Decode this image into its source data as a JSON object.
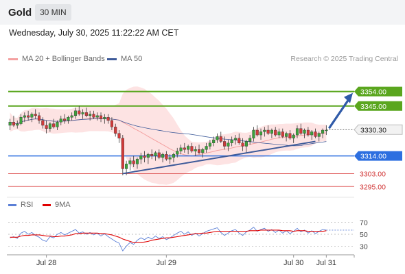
{
  "header": {
    "title": "Gold",
    "timeframe": "30 MIN"
  },
  "datetime": "Wednesday, July 30, 2025 11:22:22 AM CET",
  "legend": {
    "ma20": {
      "label": "MA 20 + Bollinger Bands",
      "color": "#f4a0a0"
    },
    "ma50": {
      "label": "MA 50",
      "color": "#3d5a99"
    }
  },
  "credit": "Research © 2025 Trading Central",
  "rsi_legend": {
    "rsi": {
      "label": "RSI",
      "color": "#5b7fd6"
    },
    "ma9": {
      "label": "9MA",
      "color": "#e00000"
    }
  },
  "chart_data": [
    {
      "type": "candlestick",
      "title": "",
      "x_labels": [
        "Jul 28",
        "Jul 29",
        "Jul 30",
        "Jul 31"
      ],
      "ylim": [
        3290,
        3370
      ],
      "last_price": 3330.3,
      "levels": [
        {
          "value": 3354.0,
          "label": "3354.00",
          "style": "resistance",
          "color": "#5aa61e"
        },
        {
          "value": 3345.0,
          "label": "3345.00",
          "style": "resistance",
          "color": "#5aa61e"
        },
        {
          "value": 3314.0,
          "label": "3314.00",
          "style": "support",
          "color": "#2d6fe0"
        },
        {
          "value": 3303.0,
          "label": "3303.00",
          "style": "minor",
          "color": "#e06060"
        },
        {
          "value": 3295.0,
          "label": "3295.00",
          "style": "minor",
          "color": "#e06060"
        }
      ],
      "trendline": {
        "from": [
          "Jul 28 16:00",
          3303
        ],
        "to": [
          "Jul 30 11:00",
          3323
        ]
      },
      "projection": {
        "from": 3330.3,
        "to": 3354.0
      },
      "candles": [
        [
          3333,
          3337,
          3330,
          3335
        ],
        [
          3335,
          3339,
          3332,
          3333
        ],
        [
          3333,
          3336,
          3331,
          3334
        ],
        [
          3334,
          3340,
          3333,
          3338
        ],
        [
          3338,
          3341,
          3335,
          3339
        ],
        [
          3339,
          3342,
          3336,
          3338
        ],
        [
          3338,
          3341,
          3335,
          3340
        ],
        [
          3340,
          3343,
          3337,
          3339
        ],
        [
          3339,
          3341,
          3334,
          3336
        ],
        [
          3336,
          3338,
          3331,
          3333
        ],
        [
          3333,
          3336,
          3328,
          3331
        ],
        [
          3331,
          3335,
          3329,
          3334
        ],
        [
          3334,
          3337,
          3331,
          3332
        ],
        [
          3332,
          3336,
          3330,
          3335
        ],
        [
          3335,
          3339,
          3333,
          3337
        ],
        [
          3337,
          3340,
          3334,
          3336
        ],
        [
          3336,
          3339,
          3334,
          3338
        ],
        [
          3338,
          3341,
          3336,
          3339
        ],
        [
          3339,
          3344,
          3337,
          3342
        ],
        [
          3342,
          3345,
          3339,
          3340
        ],
        [
          3340,
          3343,
          3337,
          3341
        ],
        [
          3341,
          3344,
          3338,
          3339
        ],
        [
          3339,
          3342,
          3336,
          3340
        ],
        [
          3340,
          3342,
          3337,
          3338
        ],
        [
          3338,
          3341,
          3336,
          3339
        ],
        [
          3339,
          3341,
          3335,
          3337
        ],
        [
          3337,
          3340,
          3334,
          3338
        ],
        [
          3338,
          3340,
          3334,
          3336
        ],
        [
          3336,
          3338,
          3330,
          3332
        ],
        [
          3332,
          3334,
          3326,
          3328
        ],
        [
          3328,
          3330,
          3322,
          3325
        ],
        [
          3325,
          3327,
          3302,
          3306
        ],
        [
          3306,
          3311,
          3302,
          3309
        ],
        [
          3309,
          3313,
          3305,
          3311
        ],
        [
          3311,
          3314,
          3307,
          3309
        ],
        [
          3309,
          3313,
          3306,
          3312
        ],
        [
          3312,
          3316,
          3309,
          3314
        ],
        [
          3314,
          3317,
          3310,
          3313
        ],
        [
          3313,
          3316,
          3309,
          3315
        ],
        [
          3315,
          3318,
          3312,
          3314
        ],
        [
          3314,
          3317,
          3311,
          3316
        ],
        [
          3316,
          3318,
          3312,
          3313
        ],
        [
          3313,
          3316,
          3310,
          3315
        ],
        [
          3315,
          3317,
          3311,
          3312
        ],
        [
          3312,
          3315,
          3309,
          3313
        ],
        [
          3313,
          3316,
          3310,
          3315
        ],
        [
          3315,
          3319,
          3313,
          3317
        ],
        [
          3317,
          3321,
          3315,
          3319
        ],
        [
          3319,
          3322,
          3316,
          3318
        ],
        [
          3318,
          3321,
          3315,
          3320
        ],
        [
          3320,
          3322,
          3316,
          3317
        ],
        [
          3317,
          3320,
          3314,
          3318
        ],
        [
          3318,
          3321,
          3315,
          3316
        ],
        [
          3316,
          3319,
          3313,
          3318
        ],
        [
          3318,
          3322,
          3316,
          3320
        ],
        [
          3320,
          3324,
          3318,
          3322
        ],
        [
          3322,
          3326,
          3320,
          3324
        ],
        [
          3324,
          3328,
          3322,
          3326
        ],
        [
          3326,
          3329,
          3322,
          3323
        ],
        [
          3323,
          3326,
          3318,
          3320
        ],
        [
          3320,
          3324,
          3317,
          3322
        ],
        [
          3322,
          3326,
          3320,
          3324
        ],
        [
          3324,
          3327,
          3321,
          3325
        ],
        [
          3325,
          3328,
          3321,
          3322
        ],
        [
          3322,
          3325,
          3317,
          3320
        ],
        [
          3320,
          3324,
          3316,
          3323
        ],
        [
          3323,
          3327,
          3321,
          3325
        ],
        [
          3325,
          3332,
          3323,
          3330
        ],
        [
          3330,
          3333,
          3326,
          3327
        ],
        [
          3327,
          3331,
          3324,
          3329
        ],
        [
          3329,
          3332,
          3326,
          3330
        ],
        [
          3330,
          3333,
          3327,
          3328
        ],
        [
          3328,
          3331,
          3325,
          3330
        ],
        [
          3330,
          3332,
          3326,
          3327
        ],
        [
          3327,
          3331,
          3325,
          3329
        ],
        [
          3329,
          3331,
          3325,
          3326
        ],
        [
          3326,
          3329,
          3323,
          3328
        ],
        [
          3328,
          3330,
          3324,
          3325
        ],
        [
          3325,
          3328,
          3322,
          3327
        ],
        [
          3327,
          3333,
          3325,
          3331
        ],
        [
          3331,
          3334,
          3327,
          3328
        ],
        [
          3328,
          3331,
          3325,
          3330
        ],
        [
          3330,
          3332,
          3326,
          3327
        ],
        [
          3327,
          3330,
          3324,
          3329
        ],
        [
          3329,
          3331,
          3325,
          3326
        ],
        [
          3326,
          3329,
          3323,
          3328
        ],
        [
          3328,
          3331,
          3325,
          3330
        ],
        [
          3330,
          3333,
          3327,
          3330
        ]
      ]
    },
    {
      "type": "line",
      "title": "RSI",
      "yticks": [
        70,
        50,
        30
      ],
      "ylim": [
        20,
        80
      ],
      "series": [
        {
          "name": "RSI",
          "color": "#5b7fd6",
          "values": [
            44,
            46,
            43,
            52,
            55,
            50,
            53,
            48,
            45,
            40,
            38,
            46,
            44,
            50,
            53,
            49,
            52,
            55,
            58,
            52,
            54,
            50,
            53,
            49,
            52,
            47,
            51,
            46,
            42,
            38,
            35,
            22,
            30,
            36,
            33,
            40,
            44,
            41,
            45,
            42,
            47,
            43,
            46,
            41,
            44,
            48,
            52,
            55,
            50,
            54,
            48,
            52,
            47,
            51,
            55,
            57,
            59,
            61,
            53,
            48,
            52,
            56,
            58,
            52,
            48,
            54,
            57,
            62,
            55,
            58,
            60,
            55,
            58,
            53,
            57,
            52,
            56,
            51,
            55,
            60,
            54,
            57,
            52,
            56,
            51,
            55,
            58,
            57
          ]
        },
        {
          "name": "9MA",
          "color": "#e00000",
          "values": [
            45,
            45,
            45,
            47,
            48,
            48,
            49,
            49,
            49,
            48,
            47,
            47,
            46,
            46,
            47,
            47,
            48,
            49,
            51,
            51,
            52,
            52,
            52,
            52,
            52,
            51,
            51,
            50,
            49,
            47,
            45,
            42,
            40,
            38,
            36,
            36,
            36,
            37,
            38,
            40,
            41,
            42,
            43,
            44,
            44,
            45,
            46,
            47,
            48,
            49,
            50,
            51,
            51,
            52,
            52,
            53,
            54,
            55,
            55,
            55,
            55,
            55,
            55,
            55,
            55,
            55,
            56,
            56,
            56,
            57,
            57,
            57,
            57,
            57,
            57,
            56,
            56,
            56,
            55,
            56,
            56,
            56,
            55,
            55,
            55,
            55,
            55,
            56
          ]
        }
      ]
    }
  ]
}
